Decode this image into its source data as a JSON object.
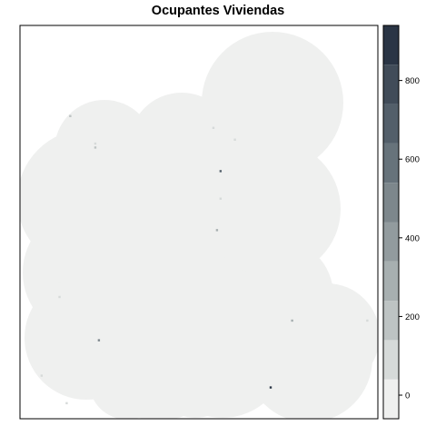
{
  "chart_data": {
    "type": "heatmap",
    "title": "Ocupantes Viviendas",
    "xlabel": "",
    "ylabel": "",
    "colorbar": {
      "min": -60,
      "max": 940,
      "ticks": [
        0,
        200,
        400,
        600,
        800
      ],
      "tick_labels": [
        "0",
        "200",
        "400",
        "600",
        "800"
      ],
      "bins": [
        {
          "from": -60,
          "to": 40,
          "color": "#eff0ef"
        },
        {
          "from": 40,
          "to": 140,
          "color": "#d6dad9"
        },
        {
          "from": 140,
          "to": 240,
          "color": "#bdc3c3"
        },
        {
          "from": 240,
          "to": 340,
          "color": "#a7afb0"
        },
        {
          "from": 340,
          "to": 440,
          "color": "#929b9e"
        },
        {
          "from": 440,
          "to": 540,
          "color": "#7d878c"
        },
        {
          "from": 540,
          "to": 640,
          "color": "#67737b"
        },
        {
          "from": 640,
          "to": 740,
          "color": "#535f6a"
        },
        {
          "from": 740,
          "to": 840,
          "color": "#414c59"
        },
        {
          "from": 840,
          "to": 940,
          "color": "#2a3545"
        }
      ]
    },
    "background_value": 0,
    "hotspots": [
      {
        "x": 0.7,
        "y": 0.08,
        "value": 900
      },
      {
        "x": 0.56,
        "y": 0.63,
        "value": 650
      },
      {
        "x": 0.22,
        "y": 0.2,
        "value": 450
      },
      {
        "x": 0.76,
        "y": 0.25,
        "value": 300
      },
      {
        "x": 0.55,
        "y": 0.48,
        "value": 250
      },
      {
        "x": 0.14,
        "y": 0.77,
        "value": 200
      },
      {
        "x": 0.21,
        "y": 0.69,
        "value": 160
      },
      {
        "x": 0.56,
        "y": 0.56,
        "value": 120
      },
      {
        "x": 0.21,
        "y": 0.7,
        "value": 100
      },
      {
        "x": 0.54,
        "y": 0.74,
        "value": 90
      },
      {
        "x": 0.6,
        "y": 0.71,
        "value": 80
      },
      {
        "x": 0.11,
        "y": 0.31,
        "value": 70
      },
      {
        "x": 0.06,
        "y": 0.11,
        "value": 60
      },
      {
        "x": 0.13,
        "y": 0.04,
        "value": 50
      },
      {
        "x": 0.97,
        "y": 0.25,
        "value": 50
      }
    ]
  }
}
